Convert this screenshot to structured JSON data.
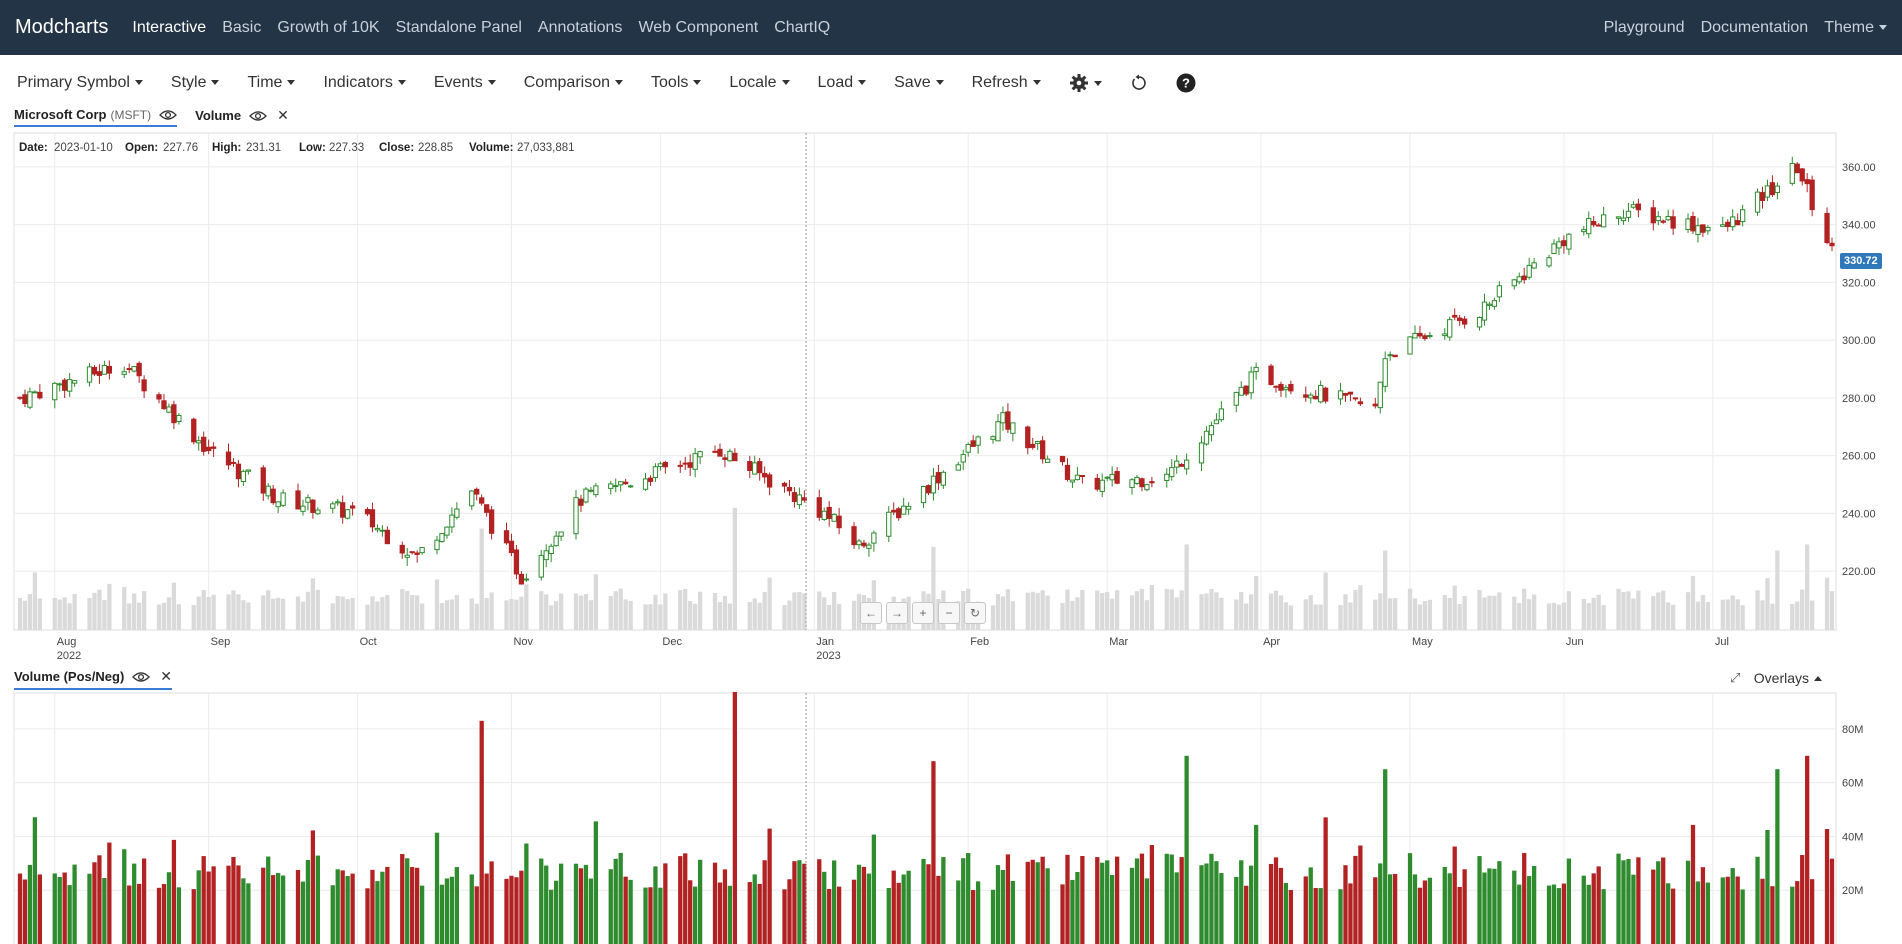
{
  "navbar": {
    "brand": "Modcharts",
    "links": [
      "Interactive",
      "Basic",
      "Growth of 10K",
      "Standalone Panel",
      "Annotations",
      "Web Component",
      "ChartIQ"
    ],
    "right_links": [
      "Playground",
      "Documentation"
    ],
    "theme_label": "Theme"
  },
  "toolbar": {
    "items": [
      "Primary Symbol",
      "Style",
      "Time",
      "Indicators",
      "Events",
      "Comparison",
      "Tools",
      "Locale",
      "Load",
      "Save",
      "Refresh"
    ],
    "icons": [
      "gear-icon",
      "reset-icon",
      "help-icon"
    ]
  },
  "price_panel": {
    "legend_name": "Microsoft Corp",
    "legend_symbol": "(MSFT)",
    "volume_legend": "Volume",
    "readout": {
      "date_label": "Date:",
      "date_value": "2023-01-10",
      "open_label": "Open:",
      "open_value": "227.76",
      "high_label": "High:",
      "high_value": "231.31",
      "low_label": "Low:",
      "low_value": "227.33",
      "close_label": "Close:",
      "close_value": "228.85",
      "volume_label": "Volume:",
      "volume_value": "27,033,881"
    },
    "last_price": "330.72",
    "y_ticks": [
      "360.00",
      "340.00",
      "320.00",
      "300.00",
      "280.00",
      "260.00",
      "240.00",
      "220.00"
    ],
    "x_ticks": [
      "Aug",
      "Sep",
      "Oct",
      "Nov",
      "Dec",
      "Jan",
      "Feb",
      "Mar",
      "Apr",
      "May",
      "Jun",
      "Jul"
    ],
    "x_years": [
      "2022",
      "2023"
    ],
    "up_color": "#2e8b2e",
    "down_color": "#b22222"
  },
  "volume_panel": {
    "legend_name": "Volume (Pos/Neg)",
    "overlays_label": "Overlays",
    "y_ticks": [
      "80M",
      "60M",
      "40M",
      "20M"
    ]
  },
  "chart_data": {
    "type": "candlestick",
    "title": "",
    "symbol": "MSFT",
    "y_range": [
      210,
      370
    ],
    "x_range": [
      "2022-07-25",
      "2023-07-25"
    ],
    "price_keypoints": [
      {
        "date": "2022-07-25",
        "close": 280
      },
      {
        "date": "2022-08-15",
        "close": 292
      },
      {
        "date": "2022-09-01",
        "close": 262
      },
      {
        "date": "2022-09-15",
        "close": 245
      },
      {
        "date": "2022-10-01",
        "close": 240
      },
      {
        "date": "2022-10-13",
        "close": 225
      },
      {
        "date": "2022-10-24",
        "close": 248
      },
      {
        "date": "2022-11-03",
        "close": 218
      },
      {
        "date": "2022-11-15",
        "close": 245
      },
      {
        "date": "2022-12-13",
        "close": 262
      },
      {
        "date": "2023-01-03",
        "close": 240
      },
      {
        "date": "2023-01-10",
        "close": 228.85
      },
      {
        "date": "2023-02-01",
        "close": 262
      },
      {
        "date": "2023-02-08",
        "close": 272
      },
      {
        "date": "2023-02-24",
        "close": 250
      },
      {
        "date": "2023-03-13",
        "close": 253
      },
      {
        "date": "2023-03-31",
        "close": 288
      },
      {
        "date": "2023-04-24",
        "close": 276
      },
      {
        "date": "2023-04-26",
        "close": 295
      },
      {
        "date": "2023-05-15",
        "close": 310
      },
      {
        "date": "2023-06-01",
        "close": 335
      },
      {
        "date": "2023-06-13",
        "close": 345
      },
      {
        "date": "2023-07-03",
        "close": 338
      },
      {
        "date": "2023-07-18",
        "close": 360
      },
      {
        "date": "2023-07-25",
        "close": 330.72
      }
    ],
    "volume": {
      "y_range": [
        0,
        90
      ],
      "unit": "M",
      "spikes": [
        {
          "date": "2022-10-26",
          "value": 83,
          "direction": "down"
        },
        {
          "date": "2022-12-16",
          "value": 86,
          "direction": "down"
        },
        {
          "date": "2023-01-25",
          "value": 68,
          "direction": "down"
        },
        {
          "date": "2023-03-17",
          "value": 70,
          "direction": "up"
        },
        {
          "date": "2023-04-26",
          "value": 65,
          "direction": "up"
        },
        {
          "date": "2023-07-14",
          "value": 65,
          "direction": "up"
        },
        {
          "date": "2023-07-20",
          "value": 70,
          "direction": "down"
        }
      ]
    }
  }
}
